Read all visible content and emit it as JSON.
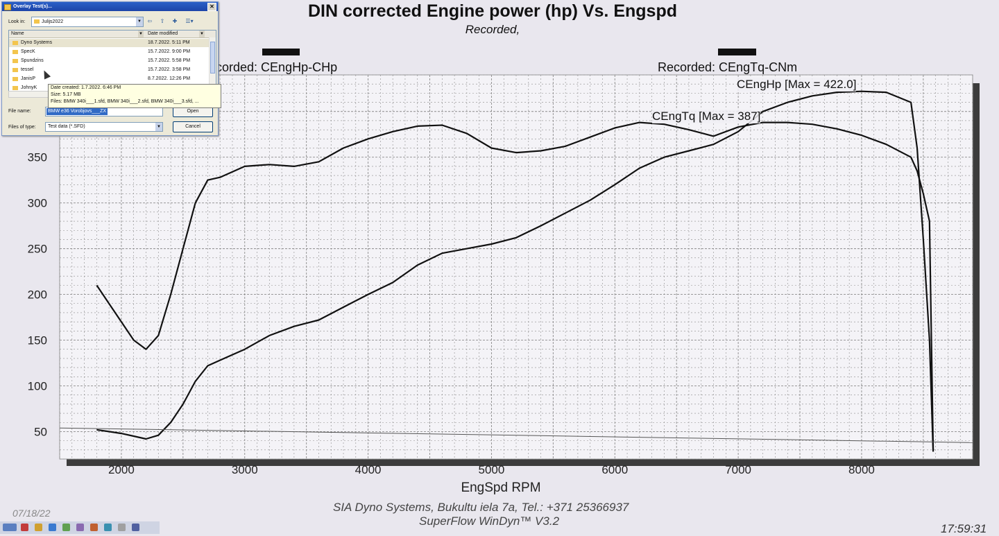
{
  "chart_data": {
    "type": "line",
    "title": "DIN corrected Engine power (hp) Vs. Engspd",
    "subtitle": "Recorded,",
    "xlabel": "EngSpd RPM",
    "ylabel": "",
    "xlim": [
      1500,
      8900
    ],
    "ylim": [
      20,
      440
    ],
    "x_ticks": [
      2000,
      3000,
      4000,
      5000,
      6000,
      7000,
      8000
    ],
    "y_ticks": [
      50,
      100,
      150,
      200,
      250,
      300,
      350
    ],
    "grid": true,
    "legend": [
      {
        "label": "Recorded: CEngHp-CHp"
      },
      {
        "label": "Recorded: CEngTq-CNm"
      }
    ],
    "annotations": [
      {
        "text": "CEngHp [Max = 422.0]",
        "series": "CEngHp-CHp"
      },
      {
        "text": "CEngTq [Max = 387]",
        "series": "CEngTq-CNm"
      }
    ],
    "series": [
      {
        "name": "CEngHp-CHp",
        "x": [
          1800,
          1900,
          2000,
          2100,
          2200,
          2300,
          2400,
          2500,
          2600,
          2700,
          2800,
          3000,
          3200,
          3400,
          3600,
          3800,
          4000,
          4200,
          4400,
          4600,
          4800,
          5000,
          5200,
          5400,
          5600,
          5800,
          6000,
          6200,
          6400,
          6600,
          6800,
          7000,
          7200,
          7400,
          7600,
          7800,
          8000,
          8200,
          8400,
          8450,
          8500,
          8550,
          8580
        ],
        "y": [
          52,
          50,
          48,
          45,
          42,
          46,
          60,
          80,
          105,
          122,
          128,
          140,
          155,
          165,
          172,
          186,
          200,
          213,
          232,
          245,
          250,
          255,
          262,
          275,
          289,
          303,
          320,
          338,
          350,
          357,
          364,
          378,
          400,
          410,
          417,
          421,
          422,
          421,
          410,
          360,
          260,
          150,
          28
        ]
      },
      {
        "name": "CEngTq-CNm",
        "x": [
          1800,
          1900,
          2000,
          2100,
          2200,
          2300,
          2400,
          2500,
          2600,
          2700,
          2800,
          3000,
          3200,
          3400,
          3600,
          3800,
          4000,
          4200,
          4400,
          4600,
          4800,
          5000,
          5200,
          5400,
          5600,
          5800,
          6000,
          6200,
          6400,
          6600,
          6800,
          7000,
          7200,
          7400,
          7600,
          7800,
          8000,
          8200,
          8400,
          8450,
          8500,
          8550,
          8580
        ],
        "y": [
          210,
          190,
          170,
          150,
          140,
          155,
          200,
          250,
          300,
          325,
          328,
          340,
          342,
          340,
          345,
          360,
          370,
          378,
          384,
          385,
          376,
          360,
          355,
          357,
          362,
          372,
          382,
          388,
          386,
          380,
          373,
          383,
          388,
          388,
          386,
          381,
          374,
          364,
          350,
          335,
          310,
          280,
          30
        ]
      },
      {
        "name": "",
        "x": [
          1500,
          8900
        ],
        "y": [
          54,
          38
        ]
      }
    ]
  },
  "page": {
    "footer_line1": "SIA Dyno Systems, Bukultu iela 7a, Tel.: +371 25366937",
    "footer_line2": "SuperFlow WinDyn™ V3.2",
    "date": "07/18/22",
    "time": "17:59:31"
  },
  "dialog": {
    "title": "Overlay Test(s)...",
    "look_in_label": "Look in:",
    "look_in_value": "Julijs2022",
    "col_name": "Name",
    "col_date": "Date modified",
    "rows": [
      {
        "name": "Dyno Systems",
        "date": "18.7.2022. 5:11 PM"
      },
      {
        "name": "SpecK",
        "date": "15.7.2022. 9:00 PM"
      },
      {
        "name": "Spundzins",
        "date": "15.7.2022. 5:58 PM"
      },
      {
        "name": "tessel",
        "date": "15.7.2022. 3:58 PM"
      },
      {
        "name": "JanisP",
        "date": "8.7.2022. 12:26 PM"
      },
      {
        "name": "JohnyK",
        "date": ""
      }
    ],
    "tooltip_line1": "Date created: 1.7.2022. 6:46 PM",
    "tooltip_line2": "Size: 5.17 MB",
    "tooltip_line3": "Files: BMW 340i___1.sfd, BMW 340i___2.sfd, BMW 340i___3.sfd, ...",
    "file_name_label": "File name:",
    "file_name_value": "BMW e36 Vorobjovs___ZX",
    "files_of_type_label": "Files of type:",
    "files_of_type_value": "Test data (*.SFD)",
    "open_label": "Open",
    "cancel_label": "Cancel"
  },
  "colors": {
    "background": "#e9e7ee",
    "plot_background": "#f4f3f7",
    "curve": "#111111",
    "grid": "#777777",
    "dialog_title": "#2b5fc7"
  }
}
